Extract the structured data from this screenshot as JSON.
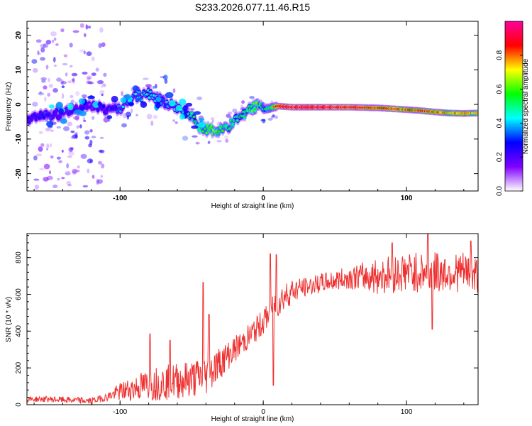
{
  "figure_title": "S233.2026.077.11.46.R15",
  "chart_data": [
    {
      "type": "heatmap",
      "title": "",
      "xlabel": "Height of straight line (km)",
      "ylabel": "Frequency (Hz)",
      "xlim": [
        -165,
        150
      ],
      "ylim": [
        -25,
        24
      ],
      "xticks": [
        -100,
        0,
        100
      ],
      "yticks": [
        -20,
        -10,
        0,
        10,
        20
      ],
      "grid": false,
      "colorbar": {
        "label": "Normalized spectral amplitude",
        "range": [
          0,
          1
        ],
        "ticks": [
          "0.0",
          "0.2",
          "0.4",
          "0.6",
          "0.8"
        ],
        "colormap": [
          "#ffffff",
          "#8000ff",
          "#0000ff",
          "#00ffff",
          "#00ff00",
          "#ffff00",
          "#ff0000",
          "#ff00a0"
        ]
      },
      "ridge_line": {
        "x": [
          -160,
          -150,
          -140,
          -130,
          -120,
          -110,
          -100,
          -90,
          -80,
          -70,
          -60,
          -50,
          -45,
          -40,
          -35,
          -30,
          -25,
          -20,
          -15,
          -10,
          -5,
          0,
          5,
          10,
          20,
          40,
          60,
          80,
          100,
          110,
          120,
          130,
          140,
          150
        ],
        "frequency": [
          -4,
          -3,
          -2.5,
          -1,
          0,
          -1.5,
          -1,
          2,
          3,
          1,
          -1,
          -3,
          -6,
          -7,
          -7.5,
          -7.5,
          -6.5,
          -4.5,
          -3,
          -1.5,
          -0.5,
          -1.5,
          -1,
          -0.5,
          -0.8,
          -0.8,
          -0.8,
          -1,
          -1.5,
          -1.8,
          -2.2,
          -2.5,
          -2.6,
          -2.5
        ],
        "amplitude": [
          0.25,
          0.3,
          0.2,
          0.2,
          0.15,
          0.25,
          0.35,
          0.4,
          0.45,
          0.35,
          0.4,
          0.5,
          0.55,
          0.55,
          0.65,
          0.6,
          0.55,
          0.5,
          0.5,
          0.55,
          0.6,
          0.5,
          0.6,
          0.9,
          0.95,
          0.95,
          0.9,
          0.85,
          0.8,
          0.85,
          0.8,
          0.75,
          0.8,
          0.7
        ]
      }
    },
    {
      "type": "line",
      "title": "",
      "xlabel": "Height of straight line (km)",
      "ylabel": "SNR (10 * v/v)",
      "xlim": [
        -165,
        150
      ],
      "ylim": [
        0,
        930
      ],
      "xticks": [
        -100,
        0,
        100
      ],
      "yticks": [
        0,
        200,
        400,
        600,
        800
      ],
      "grid": false,
      "color": "#ee3030",
      "trend": {
        "x": [
          -165,
          -150,
          -135,
          -120,
          -110,
          -100,
          -90,
          -80,
          -70,
          -60,
          -50,
          -40,
          -30,
          -20,
          -10,
          0,
          10,
          20,
          40,
          60,
          80,
          100,
          120,
          140,
          150
        ],
        "y": [
          30,
          30,
          25,
          20,
          40,
          70,
          90,
          110,
          120,
          130,
          140,
          160,
          230,
          300,
          370,
          450,
          560,
          620,
          660,
          690,
          700,
          720,
          720,
          720,
          700
        ]
      },
      "spread": {
        "x": [
          -165,
          -110,
          -100,
          -80,
          -60,
          -40,
          -20,
          0,
          10,
          30,
          60,
          80,
          100,
          150
        ],
        "amplitude": [
          15,
          20,
          50,
          90,
          100,
          110,
          70,
          70,
          90,
          50,
          60,
          100,
          110,
          110
        ]
      },
      "spikes": [
        {
          "x": -79,
          "y": 385
        },
        {
          "x": -65,
          "y": 350
        },
        {
          "x": -42,
          "y": 665
        },
        {
          "x": -38,
          "y": 490
        },
        {
          "x": 5,
          "y": 820
        },
        {
          "x": 7,
          "y": 105
        },
        {
          "x": 9,
          "y": 815
        },
        {
          "x": 90,
          "y": 880
        },
        {
          "x": 115,
          "y": 930
        },
        {
          "x": 118,
          "y": 410
        },
        {
          "x": 145,
          "y": 890
        }
      ]
    }
  ]
}
